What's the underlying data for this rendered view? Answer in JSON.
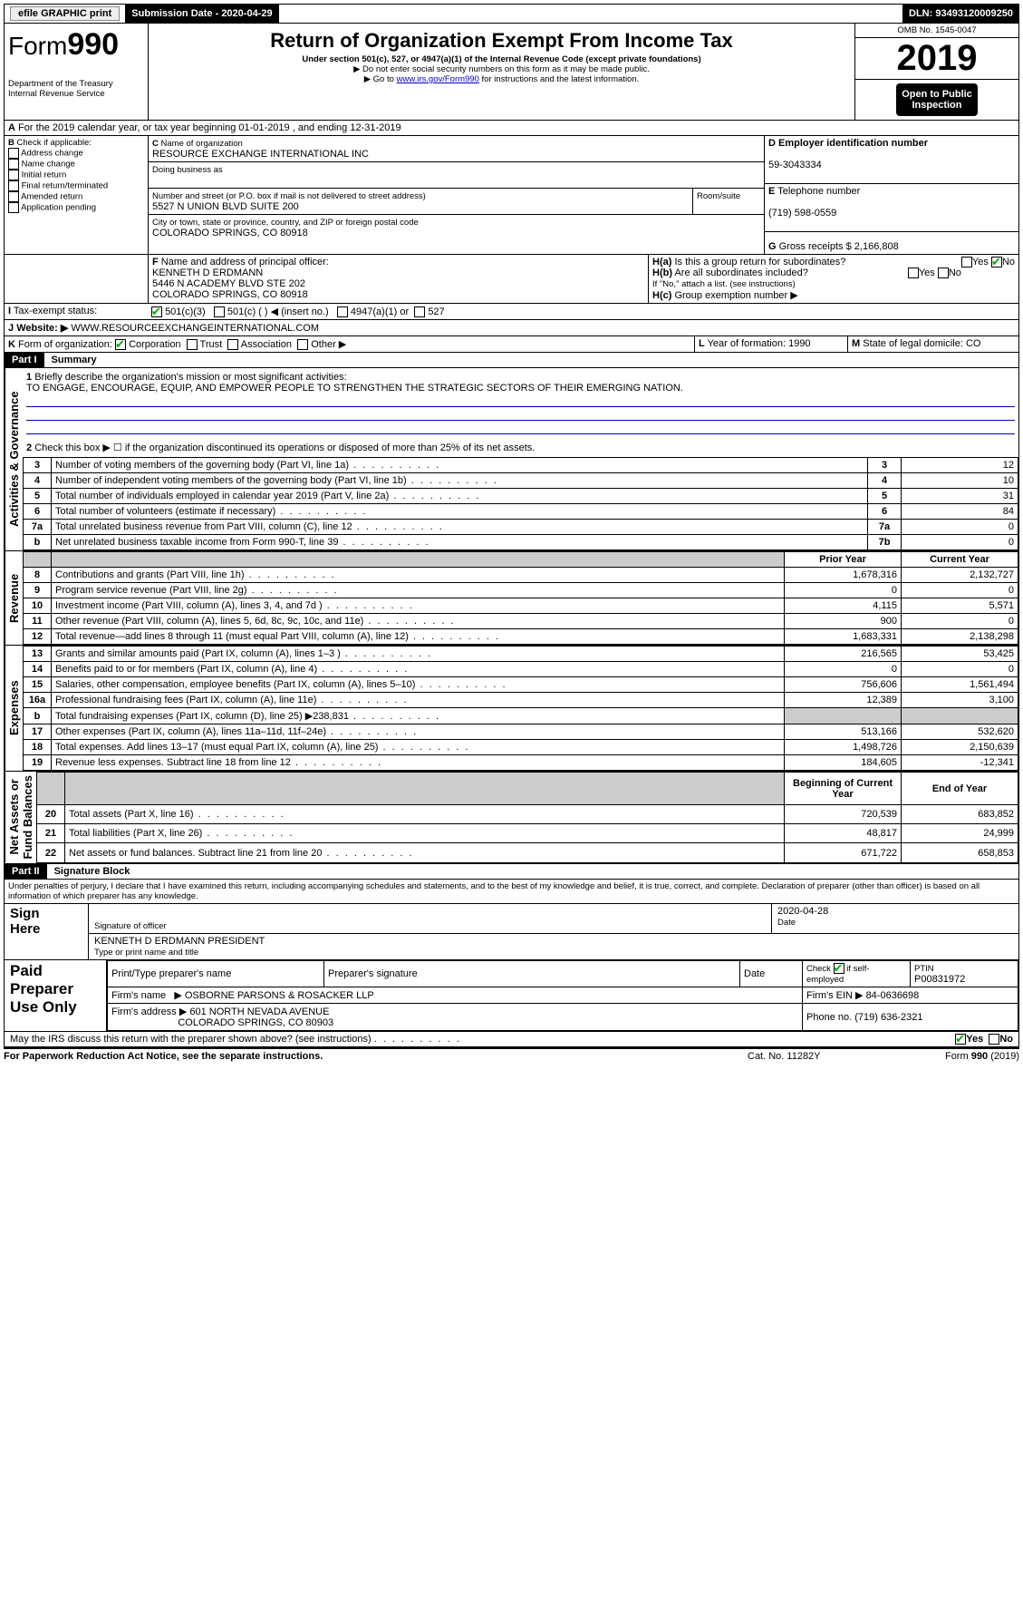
{
  "topbar": {
    "efile": "efile GRAPHIC print",
    "subdate_label": "Submission Date - 2020-04-29",
    "dln": "DLN: 93493120009250"
  },
  "header": {
    "form_word": "Form",
    "form_num": "990",
    "dept": "Department of the Treasury\nInternal Revenue Service",
    "title": "Return of Organization Exempt From Income Tax",
    "sub1": "Under section 501(c), 527, or 4947(a)(1) of the Internal Revenue Code (except private foundations)",
    "sub2": "▶ Do not enter social security numbers on this form as it may be made public.",
    "sub3_pre": "▶ Go to ",
    "sub3_link": "www.irs.gov/Form990",
    "sub3_post": " for instructions and the latest information.",
    "omb": "OMB No. 1545-0047",
    "year": "2019",
    "open": "Open to Public\nInspection"
  },
  "A": {
    "text": "For the 2019 calendar year, or tax year beginning 01-01-2019    , and ending 12-31-2019"
  },
  "B": {
    "label": "Check if applicable:",
    "opts": [
      "Address change",
      "Name change",
      "Initial return",
      "Final return/terminated",
      "Amended return",
      "Application pending"
    ]
  },
  "C": {
    "name_label": "Name of organization",
    "name": "RESOURCE EXCHANGE INTERNATIONAL INC",
    "dba_label": "Doing business as",
    "dba": "",
    "addr_label": "Number and street (or P.O. box if mail is not delivered to street address)",
    "room_label": "Room/suite",
    "addr": "5527 N UNION BLVD SUITE 200",
    "city_label": "City or town, state or province, country, and ZIP or foreign postal code",
    "city": "COLORADO SPRINGS, CO  80918"
  },
  "D": {
    "label": "Employer identification number",
    "val": "59-3043334"
  },
  "E": {
    "label": "Telephone number",
    "val": "(719) 598-0559"
  },
  "G": {
    "label": "Gross receipts $",
    "val": "2,166,808"
  },
  "F": {
    "label": "Name and address of principal officer:",
    "lines": [
      "KENNETH D ERDMANN",
      "5446 N ACADEMY BLVD STE 202",
      "COLORADO SPRINGS, CO  80918"
    ]
  },
  "H": {
    "a": "Is this a group return for subordinates?",
    "b": "Are all subordinates included?",
    "b2": "If \"No,\" attach a list. (see instructions)",
    "c": "Group exemption number ▶",
    "yes": "Yes",
    "no": "No"
  },
  "I": {
    "label": "Tax-exempt status:",
    "c1": "501(c)(3)",
    "c2": "501(c) (  ) ◀ (insert no.)",
    "c3": "4947(a)(1) or",
    "c4": "527"
  },
  "J": {
    "label": "Website: ▶",
    "val": "WWW.RESOURCEEXCHANGEINTERNATIONAL.COM"
  },
  "K": {
    "label": "Form of organization:",
    "opts": [
      "Corporation",
      "Trust",
      "Association",
      "Other ▶"
    ]
  },
  "L": {
    "label": "Year of formation:",
    "val": "1990"
  },
  "M": {
    "label": "State of legal domicile:",
    "val": "CO"
  },
  "part1": {
    "bar": "Part I",
    "title": "Summary"
  },
  "summary": {
    "l1_label": "Briefly describe the organization's mission or most significant activities:",
    "l1_text": "TO ENGAGE, ENCOURAGE, EQUIP, AND EMPOWER PEOPLE TO STRENGTHEN THE STRATEGIC SECTORS OF THEIR EMERGING NATION.",
    "l2": "Check this box ▶ ☐  if the organization discontinued its operations or disposed of more than 25% of its net assets.",
    "l3": "Number of voting members of the governing body (Part VI, line 1a)",
    "v3": "12",
    "l4": "Number of independent voting members of the governing body (Part VI, line 1b)",
    "v4": "10",
    "l5": "Total number of individuals employed in calendar year 2019 (Part V, line 2a)",
    "v5": "31",
    "l6": "Total number of volunteers (estimate if necessary)",
    "v6": "84",
    "l7a": "Total unrelated business revenue from Part VIII, column (C), line 12",
    "v7a": "0",
    "l7b": "Net unrelated business taxable income from Form 990-T, line 39",
    "v7b": "0"
  },
  "cols": {
    "prior": "Prior Year",
    "curr": "Current Year",
    "beg": "Beginning of Current Year",
    "end": "End of Year"
  },
  "revenue": {
    "label": "Revenue",
    "rows": [
      {
        "n": "8",
        "t": "Contributions and grants (Part VIII, line 1h)",
        "p": "1,678,316",
        "c": "2,132,727"
      },
      {
        "n": "9",
        "t": "Program service revenue (Part VIII, line 2g)",
        "p": "0",
        "c": "0"
      },
      {
        "n": "10",
        "t": "Investment income (Part VIII, column (A), lines 3, 4, and 7d )",
        "p": "4,115",
        "c": "5,571"
      },
      {
        "n": "11",
        "t": "Other revenue (Part VIII, column (A), lines 5, 6d, 8c, 9c, 10c, and 11e)",
        "p": "900",
        "c": "0"
      },
      {
        "n": "12",
        "t": "Total revenue—add lines 8 through 11 (must equal Part VIII, column (A), line 12)",
        "p": "1,683,331",
        "c": "2,138,298"
      }
    ]
  },
  "expenses": {
    "label": "Expenses",
    "rows": [
      {
        "n": "13",
        "t": "Grants and similar amounts paid (Part IX, column (A), lines 1–3 )",
        "p": "216,565",
        "c": "53,425"
      },
      {
        "n": "14",
        "t": "Benefits paid to or for members (Part IX, column (A), line 4)",
        "p": "0",
        "c": "0"
      },
      {
        "n": "15",
        "t": "Salaries, other compensation, employee benefits (Part IX, column (A), lines 5–10)",
        "p": "756,606",
        "c": "1,561,494"
      },
      {
        "n": "16a",
        "t": "Professional fundraising fees (Part IX, column (A), line 11e)",
        "p": "12,389",
        "c": "3,100"
      },
      {
        "n": "b",
        "t": "Total fundraising expenses (Part IX, column (D), line 25) ▶238,831",
        "p": "",
        "c": "",
        "grey": true
      },
      {
        "n": "17",
        "t": "Other expenses (Part IX, column (A), lines 11a–11d, 11f–24e)",
        "p": "513,166",
        "c": "532,620"
      },
      {
        "n": "18",
        "t": "Total expenses. Add lines 13–17 (must equal Part IX, column (A), line 25)",
        "p": "1,498,726",
        "c": "2,150,639"
      },
      {
        "n": "19",
        "t": "Revenue less expenses. Subtract line 18 from line 12",
        "p": "184,605",
        "c": "-12,341"
      }
    ]
  },
  "netassets": {
    "label": "Net Assets or\nFund Balances",
    "rows": [
      {
        "n": "20",
        "t": "Total assets (Part X, line 16)",
        "p": "720,539",
        "c": "683,852"
      },
      {
        "n": "21",
        "t": "Total liabilities (Part X, line 26)",
        "p": "48,817",
        "c": "24,999"
      },
      {
        "n": "22",
        "t": "Net assets or fund balances. Subtract line 21 from line 20",
        "p": "671,722",
        "c": "658,853"
      }
    ]
  },
  "part2": {
    "bar": "Part II",
    "title": "Signature Block",
    "decl": "Under penalties of perjury, I declare that I have examined this return, including accompanying schedules and statements, and to the best of my knowledge and belief, it is true, correct, and complete. Declaration of preparer (other than officer) is based on all information of which preparer has any knowledge."
  },
  "sign": {
    "here": "Sign\nHere",
    "sig_label": "Signature of officer",
    "date_label": "Date",
    "date": "2020-04-28",
    "name": "KENNETH D ERDMANN  PRESIDENT",
    "name_label": "Type or print name and title"
  },
  "paid": {
    "label": "Paid\nPreparer\nUse Only",
    "h1": "Print/Type preparer's name",
    "h2": "Preparer's signature",
    "h3": "Date",
    "h4": "Check ☑ if self-employed",
    "h5": "PTIN",
    "ptin": "P00831972",
    "firm_label": "Firm's name",
    "firm": "▶ OSBORNE PARSONS & ROSACKER LLP",
    "ein_label": "Firm's EIN ▶",
    "ein": "84-0636698",
    "addr_label": "Firm's address ▶",
    "addr1": "601 NORTH NEVADA AVENUE",
    "addr2": "COLORADO SPRINGS, CO  80903",
    "phone_label": "Phone no.",
    "phone": "(719) 636-2321"
  },
  "footer": {
    "q": "May the IRS discuss this return with the preparer shown above? (see instructions)",
    "notice": "For Paperwork Reduction Act Notice, see the separate instructions.",
    "cat": "Cat. No. 11282Y",
    "form": "Form 990 (2019)"
  }
}
